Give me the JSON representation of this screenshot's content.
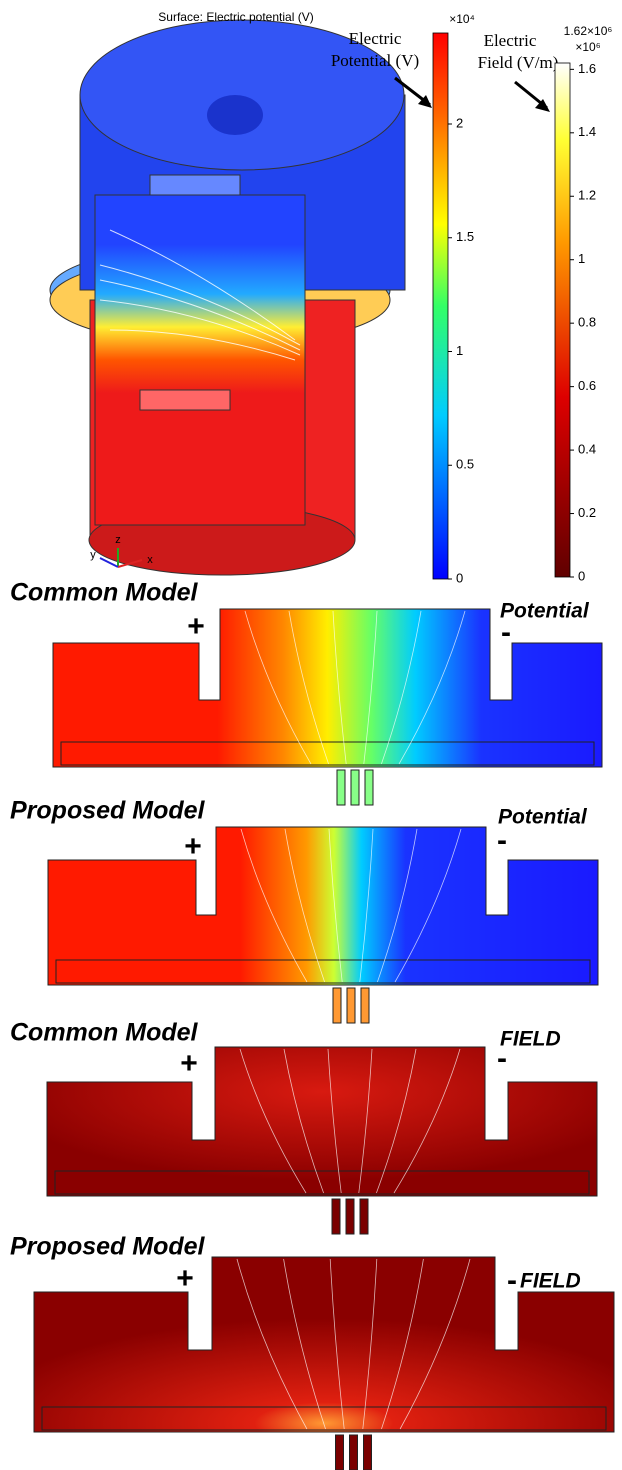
{
  "top_panel": {
    "title": "Surface: Electric potential (V)",
    "axis_labels": [
      "z",
      "y",
      "x"
    ]
  },
  "potential_colorbar": {
    "label_line1": "Electric",
    "label_line2": "Potential (V)",
    "multiplier": "×10⁴",
    "lim": [
      0,
      2.4
    ],
    "ticks": [
      0,
      0.5,
      1,
      1.5,
      2
    ]
  },
  "field_colorbar": {
    "label_line1": "Electric",
    "label_line2": "Field (V/m)",
    "max_label": "1.62×10⁶",
    "multiplier": "×10⁶",
    "lim": [
      0,
      1.62
    ],
    "ticks": [
      0,
      0.2,
      0.4,
      0.6,
      0.8,
      1,
      1.2,
      1.4,
      1.6
    ]
  },
  "panels": [
    {
      "title": "Common Model",
      "kind": "Potential",
      "plus": "+",
      "minus": "-"
    },
    {
      "title": "Proposed Model",
      "kind": "Potential",
      "plus": "+",
      "minus": "-"
    },
    {
      "title": "Common Model",
      "kind": "FIELD",
      "plus": "+",
      "minus": "-"
    },
    {
      "title": "Proposed Model",
      "kind": "FIELD",
      "plus": "+",
      "minus": "-"
    }
  ]
}
